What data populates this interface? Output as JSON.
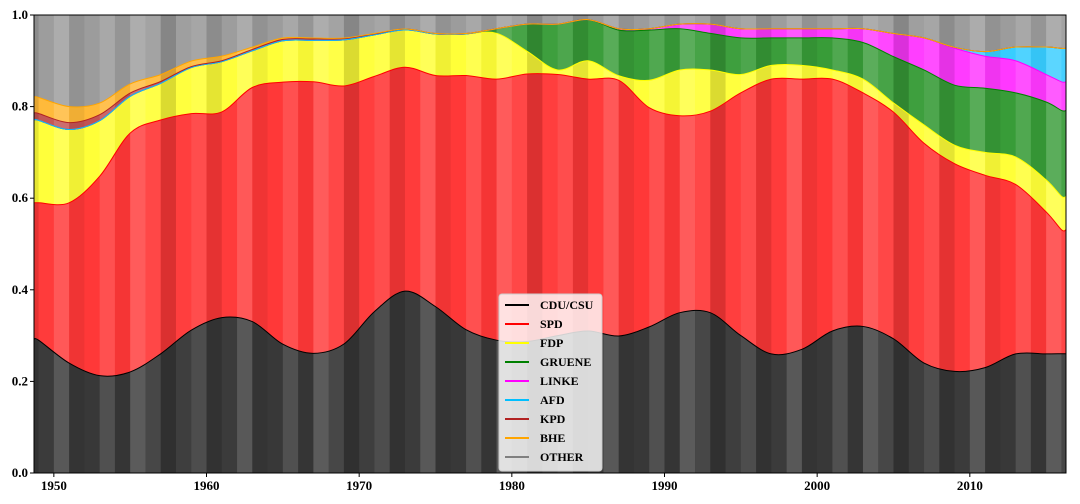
{
  "chart_data": {
    "type": "area",
    "stacked": true,
    "normalized": true,
    "x": [
      1949,
      1951,
      1953,
      1955,
      1957,
      1959,
      1961,
      1963,
      1965,
      1967,
      1969,
      1971,
      1973,
      1975,
      1977,
      1979,
      1981,
      1983,
      1985,
      1987,
      1989,
      1991,
      1993,
      1995,
      1997,
      1999,
      2001,
      2003,
      2005,
      2007,
      2009,
      2011,
      2013,
      2015,
      2016
    ],
    "series": [
      {
        "name": "CDU/CSU",
        "color": "#000000",
        "values": [
          0.29,
          0.24,
          0.21,
          0.22,
          0.26,
          0.31,
          0.34,
          0.33,
          0.28,
          0.26,
          0.28,
          0.35,
          0.39,
          0.36,
          0.31,
          0.29,
          0.29,
          0.3,
          0.31,
          0.3,
          0.32,
          0.35,
          0.35,
          0.3,
          0.26,
          0.27,
          0.31,
          0.32,
          0.29,
          0.24,
          0.22,
          0.23,
          0.26,
          0.26,
          0.25
        ]
      },
      {
        "name": "SPD",
        "color": "#ff0000",
        "values": [
          0.3,
          0.35,
          0.43,
          0.52,
          0.51,
          0.47,
          0.45,
          0.51,
          0.57,
          0.59,
          0.56,
          0.51,
          0.48,
          0.5,
          0.55,
          0.57,
          0.59,
          0.57,
          0.55,
          0.56,
          0.48,
          0.43,
          0.44,
          0.53,
          0.6,
          0.59,
          0.55,
          0.51,
          0.49,
          0.48,
          0.45,
          0.42,
          0.37,
          0.31,
          0.26
        ]
      },
      {
        "name": "FDP",
        "color": "#ffff00",
        "values": [
          0.18,
          0.16,
          0.12,
          0.08,
          0.08,
          0.1,
          0.11,
          0.08,
          0.09,
          0.09,
          0.1,
          0.09,
          0.08,
          0.09,
          0.09,
          0.1,
          0.05,
          0.01,
          0.04,
          0.01,
          0.06,
          0.1,
          0.09,
          0.04,
          0.03,
          0.03,
          0.02,
          0.03,
          0.02,
          0.04,
          0.04,
          0.05,
          0.06,
          0.07,
          0.07
        ]
      },
      {
        "name": "GRUENE",
        "color": "#008000",
        "values": [
          0,
          0,
          0,
          0,
          0,
          0,
          0,
          0,
          0,
          0,
          0,
          0,
          0,
          0,
          0,
          0.01,
          0.06,
          0.1,
          0.09,
          0.1,
          0.11,
          0.09,
          0.08,
          0.08,
          0.06,
          0.06,
          0.07,
          0.08,
          0.1,
          0.12,
          0.13,
          0.14,
          0.14,
          0.17,
          0.18
        ]
      },
      {
        "name": "LINKE",
        "color": "#ff00ff",
        "values": [
          0,
          0,
          0,
          0,
          0,
          0,
          0,
          0,
          0,
          0,
          0,
          0,
          0,
          0,
          0,
          0,
          0,
          0,
          0,
          0.003,
          0.003,
          0.01,
          0.02,
          0.02,
          0.02,
          0.02,
          0.02,
          0.03,
          0.05,
          0.07,
          0.08,
          0.07,
          0.07,
          0.06,
          0.06
        ]
      },
      {
        "name": "AFD",
        "color": "#00bfff",
        "values": [
          0,
          0,
          0,
          0,
          0,
          0,
          0,
          0,
          0,
          0,
          0,
          0,
          0,
          0,
          0,
          0,
          0,
          0,
          0,
          0,
          0,
          0,
          0,
          0,
          0,
          0,
          0,
          0,
          0,
          0,
          0.002,
          0.01,
          0.03,
          0.06,
          0.07
        ]
      },
      {
        "name": "KPD",
        "color": "#b22222",
        "values": [
          0.015,
          0.015,
          0.013,
          0.007,
          0.004,
          0.002,
          0.002,
          0.003,
          0.003,
          0.003,
          0.003,
          0.002,
          0.002,
          0.001,
          0.001,
          0,
          0,
          0,
          0,
          0,
          0,
          0,
          0,
          0,
          0,
          0,
          0,
          0,
          0,
          0,
          0,
          0,
          0,
          0,
          0
        ]
      },
      {
        "name": "BHE",
        "color": "#ffa500",
        "values": [
          0.035,
          0.035,
          0.025,
          0.02,
          0.015,
          0.012,
          0.01,
          0.005,
          0.003,
          0.002,
          0.001,
          0.001,
          0,
          0,
          0,
          0,
          0,
          0,
          0,
          0,
          0,
          0,
          0,
          0,
          0,
          0,
          0,
          0,
          0,
          0,
          0,
          0,
          0,
          0,
          0
        ]
      },
      {
        "name": "OTHER",
        "color": "#808080",
        "values": [
          0.18,
          0.2,
          0.19,
          0.15,
          0.13,
          0.1,
          0.09,
          0.07,
          0.05,
          0.05,
          0.05,
          0.04,
          0.03,
          0.04,
          0.04,
          0.03,
          0.02,
          0.02,
          0.01,
          0.03,
          0.03,
          0.02,
          0.02,
          0.03,
          0.03,
          0.03,
          0.03,
          0.03,
          0.04,
          0.05,
          0.07,
          0.08,
          0.07,
          0.07,
          0.07
        ]
      }
    ],
    "xlim": [
      1948.7,
      2016.3
    ],
    "ylim": [
      0,
      1.0
    ],
    "x_ticks": [
      1950,
      1960,
      1970,
      1980,
      1990,
      2000,
      2010
    ],
    "y_ticks": [
      0.0,
      0.2,
      0.4,
      0.6,
      0.8,
      1.0
    ],
    "y_tick_labels": [
      "0.0",
      "0.2",
      "0.4",
      "0.6",
      "0.8",
      "1.0"
    ],
    "title": "",
    "xlabel": "",
    "ylabel": "",
    "grid": false,
    "legend_placement": "lower-center"
  }
}
